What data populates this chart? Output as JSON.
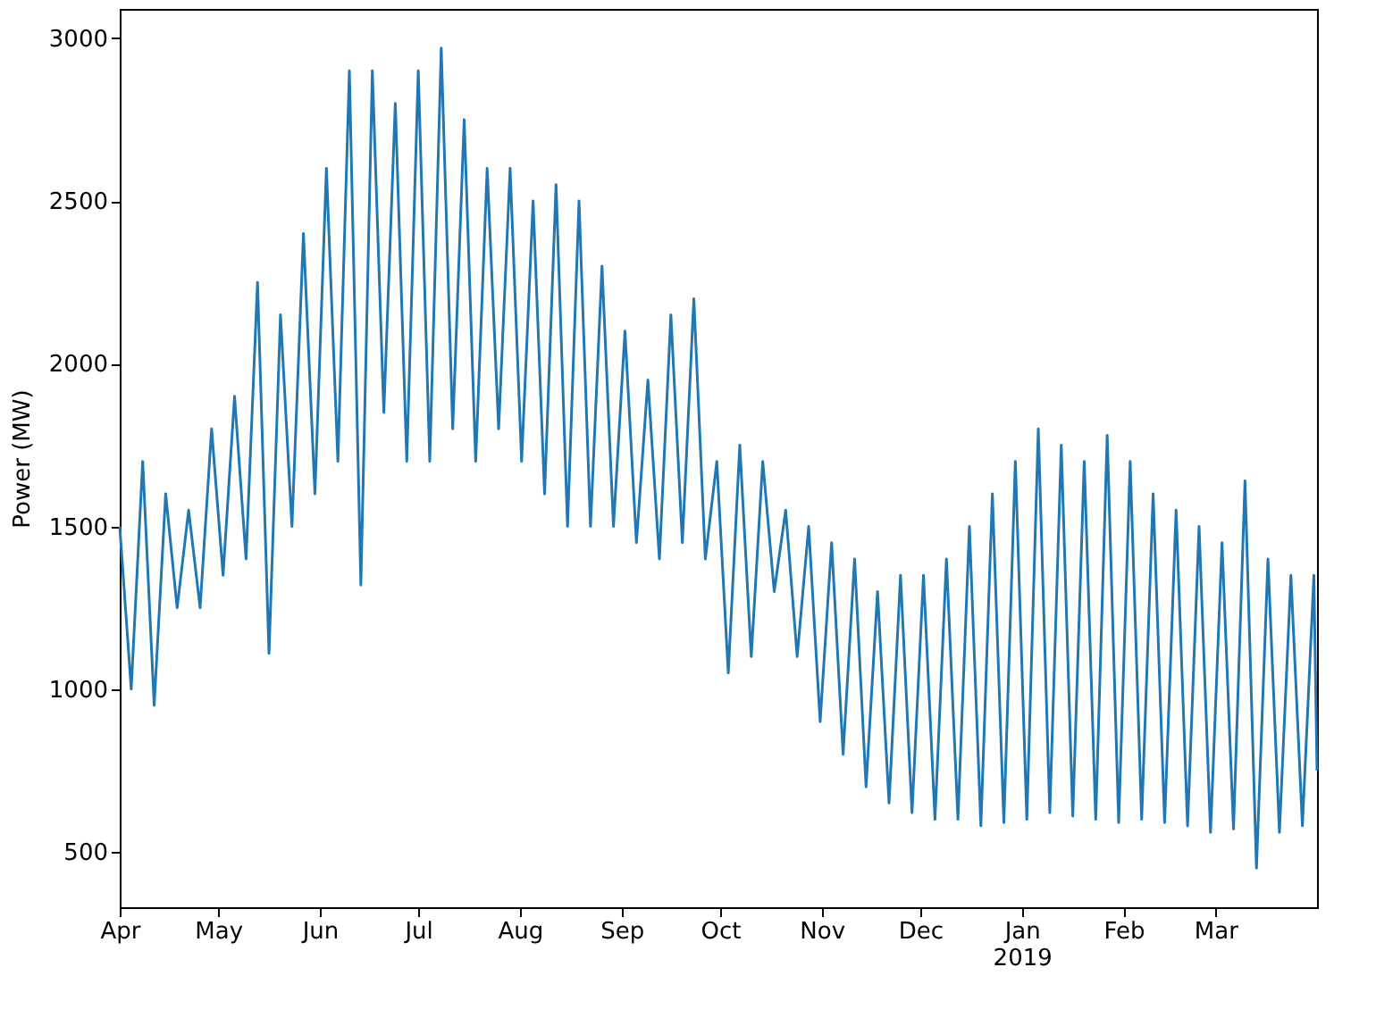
{
  "chart_data": {
    "type": "line",
    "ylabel": "Power (MW)",
    "grid": false,
    "marker": "none",
    "line_style": "solid",
    "xlim": [
      "2018-04-01T00:00",
      "2019-03-31T23:00"
    ],
    "xticks": [
      {
        "value": "2018-04-01",
        "label": "Apr"
      },
      {
        "value": "2018-05-01",
        "label": "May"
      },
      {
        "value": "2018-06-01",
        "label": "Jun"
      },
      {
        "value": "2018-07-01",
        "label": "Jul"
      },
      {
        "value": "2018-08-01",
        "label": "Aug"
      },
      {
        "value": "2018-09-01",
        "label": "Sep"
      },
      {
        "value": "2018-10-01",
        "label": "Oct"
      },
      {
        "value": "2018-11-01",
        "label": "Nov"
      },
      {
        "value": "2018-12-01",
        "label": "Dec"
      },
      {
        "value": "2019-01-01",
        "label": "Jan\n2019"
      },
      {
        "value": "2019-02-01",
        "label": "Feb"
      },
      {
        "value": "2019-03-01",
        "label": "Mar"
      }
    ],
    "ylim": [
      330,
      3090
    ],
    "yticks": [
      500,
      1000,
      1500,
      2000,
      2500,
      3000
    ],
    "series": [
      {
        "color": "#1f77b4",
        "x": [
          "2018-04-01T00:00",
          "2018-04-04T12:00",
          "2018-04-08T00:00",
          "2018-04-11T12:00",
          "2018-04-15T00:00",
          "2018-04-18T12:00",
          "2018-04-22T00:00",
          "2018-04-25T12:00",
          "2018-04-29T00:00",
          "2018-05-02T12:00",
          "2018-05-06T00:00",
          "2018-05-09T12:00",
          "2018-05-13T00:00",
          "2018-05-16T12:00",
          "2018-05-20T00:00",
          "2018-05-23T12:00",
          "2018-05-27T00:00",
          "2018-05-30T12:00",
          "2018-06-03T00:00",
          "2018-06-06T12:00",
          "2018-06-10T00:00",
          "2018-06-13T12:00",
          "2018-06-17T00:00",
          "2018-06-20T12:00",
          "2018-06-24T00:00",
          "2018-06-27T12:00",
          "2018-07-01T00:00",
          "2018-07-04T12:00",
          "2018-07-08T00:00",
          "2018-07-11T12:00",
          "2018-07-15T00:00",
          "2018-07-18T12:00",
          "2018-07-22T00:00",
          "2018-07-25T12:00",
          "2018-07-29T00:00",
          "2018-08-01T12:00",
          "2018-08-05T00:00",
          "2018-08-08T12:00",
          "2018-08-12T00:00",
          "2018-08-15T12:00",
          "2018-08-19T00:00",
          "2018-08-22T12:00",
          "2018-08-26T00:00",
          "2018-08-29T12:00",
          "2018-09-02T00:00",
          "2018-09-05T12:00",
          "2018-09-09T00:00",
          "2018-09-12T12:00",
          "2018-09-16T00:00",
          "2018-09-19T12:00",
          "2018-09-23T00:00",
          "2018-09-26T12:00",
          "2018-09-30T00:00",
          "2018-10-03T12:00",
          "2018-10-07T00:00",
          "2018-10-10T12:00",
          "2018-10-14T00:00",
          "2018-10-17T12:00",
          "2018-10-21T00:00",
          "2018-10-24T12:00",
          "2018-10-28T00:00",
          "2018-10-31T12:00",
          "2018-11-04T00:00",
          "2018-11-07T12:00",
          "2018-11-11T00:00",
          "2018-11-14T12:00",
          "2018-11-18T00:00",
          "2018-11-21T12:00",
          "2018-11-25T00:00",
          "2018-11-28T12:00",
          "2018-12-02T00:00",
          "2018-12-05T12:00",
          "2018-12-09T00:00",
          "2018-12-12T12:00",
          "2018-12-16T00:00",
          "2018-12-19T12:00",
          "2018-12-23T00:00",
          "2018-12-26T12:00",
          "2018-12-30T00:00",
          "2019-01-02T12:00",
          "2019-01-06T00:00",
          "2019-01-09T12:00",
          "2019-01-13T00:00",
          "2019-01-16T12:00",
          "2019-01-20T00:00",
          "2019-01-23T12:00",
          "2019-01-27T00:00",
          "2019-01-30T12:00",
          "2019-02-03T00:00",
          "2019-02-06T12:00",
          "2019-02-10T00:00",
          "2019-02-13T12:00",
          "2019-02-17T00:00",
          "2019-02-20T12:00",
          "2019-02-24T00:00",
          "2019-02-27T12:00",
          "2019-03-03T00:00",
          "2019-03-06T12:00",
          "2019-03-10T00:00",
          "2019-03-13T12:00",
          "2019-03-17T00:00",
          "2019-03-20T12:00",
          "2019-03-24T00:00",
          "2019-03-27T12:00",
          "2019-03-31T00:00",
          "2019-03-31T23:00"
        ],
        "values": [
          1500,
          1000,
          1700,
          950,
          1600,
          1250,
          1550,
          1250,
          1800,
          1350,
          1900,
          1400,
          2250,
          1110,
          2150,
          1500,
          2400,
          1600,
          2600,
          1700,
          2900,
          1320,
          2900,
          1850,
          2800,
          1700,
          2900,
          1700,
          2970,
          1800,
          2750,
          1700,
          2600,
          1800,
          2600,
          1700,
          2500,
          1600,
          2550,
          1500,
          2500,
          1500,
          2300,
          1500,
          2100,
          1450,
          1950,
          1400,
          2150,
          1450,
          2200,
          1400,
          1700,
          1050,
          1750,
          1100,
          1700,
          1300,
          1550,
          1100,
          1500,
          900,
          1450,
          800,
          1400,
          700,
          1300,
          650,
          1350,
          620,
          1350,
          600,
          1400,
          600,
          1500,
          580,
          1600,
          590,
          1700,
          600,
          1800,
          620,
          1750,
          610,
          1700,
          600,
          1780,
          590,
          1700,
          600,
          1600,
          590,
          1550,
          580,
          1500,
          560,
          1450,
          570,
          1640,
          450,
          1400,
          560,
          1350,
          580,
          1350,
          750
        ]
      }
    ]
  }
}
